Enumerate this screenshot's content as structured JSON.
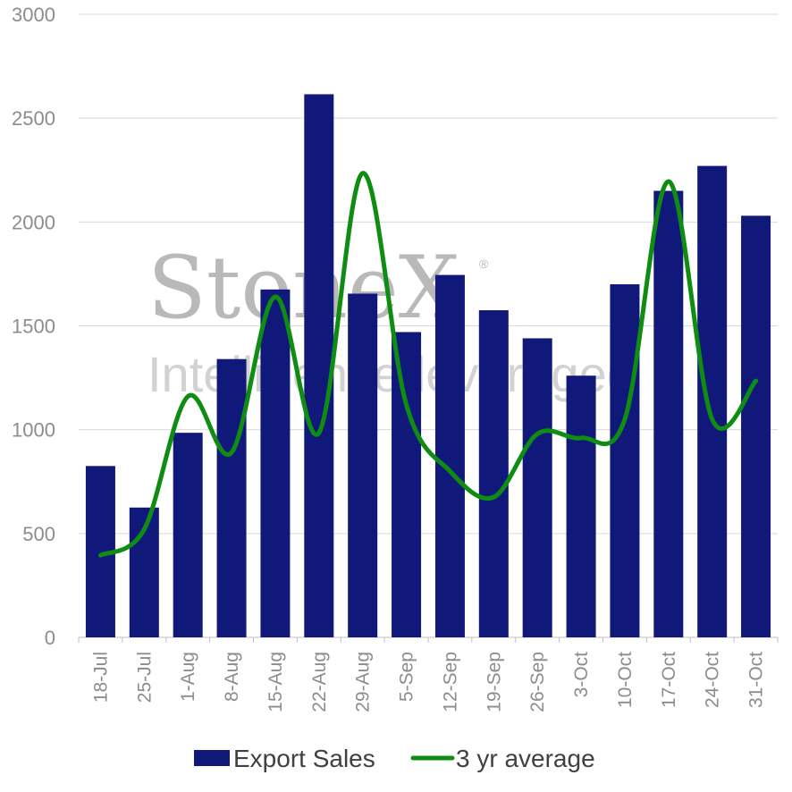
{
  "watermark": {
    "brand": "StoneX",
    "registered": "®",
    "tagline": "Intelligence leveraged"
  },
  "chart_data": {
    "type": "bar",
    "categories": [
      "18-Jul",
      "25-Jul",
      "1-Aug",
      "8-Aug",
      "15-Aug",
      "22-Aug",
      "29-Aug",
      "5-Sep",
      "12-Sep",
      "19-Sep",
      "26-Sep",
      "3-Oct",
      "10-Oct",
      "17-Oct",
      "24-Oct",
      "31-Oct"
    ],
    "series": [
      {
        "name": "Export Sales",
        "type": "bar",
        "color": "#10187a",
        "values": [
          825,
          625,
          985,
          1340,
          1675,
          2615,
          1655,
          1470,
          1745,
          1575,
          1440,
          1260,
          1700,
          2150,
          2270,
          2030
        ]
      },
      {
        "name": "3 yr average",
        "type": "line",
        "color": "#0f8c12",
        "smooth": true,
        "values": [
          395,
          520,
          1160,
          890,
          1640,
          985,
          2235,
          1120,
          800,
          675,
          980,
          960,
          1050,
          2195,
          1050,
          1235
        ]
      }
    ],
    "ylim": [
      0,
      3000
    ],
    "yticks": [
      0,
      500,
      1000,
      1500,
      2000,
      2500,
      3000
    ],
    "grid": true,
    "legend": "bottom"
  }
}
